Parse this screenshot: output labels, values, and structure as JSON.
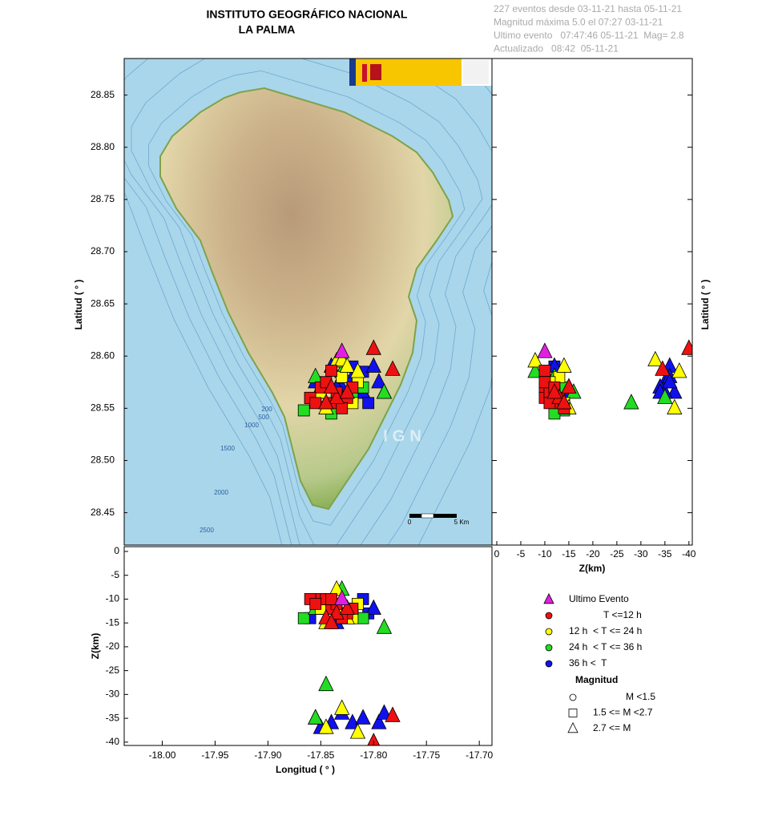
{
  "chart_data": {
    "type": "scatter",
    "title": "INSTITUTO GEOGRÁFICO NACIONAL",
    "subtitle": "LA PALMA",
    "info": [
      "227 eventos desde 03-11-21 hasta 05-11-21",
      "Magnitud máxima 5.0 el 07:27 03-11-21",
      "Ultimo evento   07:47:46 05-11-21  Mag= 2.8",
      "Actualizado   08:42  05-11-21"
    ],
    "xlabel": "Longitud ( ° )",
    "ylabel": "Latitud ( ° )",
    "zlabel": "Z(km)",
    "xlim": [
      -18.036,
      -17.688
    ],
    "ylim": [
      28.419,
      28.885
    ],
    "zlim": [
      1,
      -40.7
    ],
    "xticks": [
      {
        "value": -18.0,
        "label": "-18.00"
      },
      -17.95,
      {
        "value": -17.9,
        "label": "-17.90"
      },
      -17.85,
      {
        "value": -17.8,
        "label": "-17.80"
      },
      -17.75,
      {
        "value": -17.7,
        "label": "-17.70"
      }
    ],
    "yticks": [
      {
        "value": 28.45,
        "label": "28.45"
      },
      {
        "value": 28.5,
        "label": "28.50"
      },
      28.55,
      {
        "value": 28.6,
        "label": "28.60"
      },
      28.65,
      {
        "value": 28.7,
        "label": "28.70"
      },
      28.75,
      {
        "value": 28.8,
        "label": "28.80"
      },
      28.85
    ],
    "zticks": [
      0,
      -5,
      -10,
      -15,
      -20,
      -25,
      -30,
      -35,
      -40
    ],
    "map_annotations": [
      "200",
      "500",
      "1000",
      "1500",
      "2000",
      "2500",
      "IGN",
      "0",
      "5 Km"
    ],
    "series": [
      {
        "name": "Ultimo Evento",
        "color": "#e020e0",
        "legend_marker": "triangle",
        "x": [
          -17.83
        ],
        "values": [
          28.604
        ],
        "z": [
          -10
        ],
        "markers": [
          "triangle"
        ]
      },
      {
        "name": "T <=12 h",
        "color": "#ee1111",
        "legend_marker": "circle",
        "x": [
          -17.8,
          -17.782,
          -17.85,
          -17.86,
          -17.84,
          -17.835,
          -17.825,
          -17.83,
          -17.845,
          -17.82,
          -17.855,
          -17.84,
          -17.835,
          -17.845,
          -17.825,
          -17.84
        ],
        "values": [
          28.607,
          28.587,
          28.57,
          28.56,
          28.555,
          28.565,
          28.56,
          28.55,
          28.575,
          28.57,
          28.555,
          28.586,
          28.56,
          28.555,
          28.565,
          28.57
        ],
        "z": [
          -40,
          -34.5,
          -10,
          -10,
          -12,
          -11,
          -13,
          -14,
          -10,
          -12,
          -11,
          -10,
          -13,
          -14,
          -12,
          -15
        ],
        "markers": [
          "triangle",
          "triangle",
          "square",
          "square",
          "square",
          "square",
          "square",
          "square",
          "square",
          "square",
          "square",
          "square",
          "triangle",
          "triangle",
          "triangle",
          "triangle"
        ]
      },
      {
        "name": "12 h  < T <= 24 h",
        "color": "#ffff00",
        "legend_marker": "circle",
        "x": [
          -17.835,
          -17.85,
          -17.82,
          -17.83,
          -17.845,
          -17.815,
          -17.83,
          -17.845,
          -17.825,
          -17.815
        ],
        "values": [
          28.595,
          28.565,
          28.555,
          28.58,
          28.55,
          28.575,
          28.596,
          28.55,
          28.59,
          28.585
        ],
        "z": [
          -8,
          -12,
          -14,
          -13,
          -15,
          -11,
          -33,
          -37,
          -14,
          -38
        ],
        "markers": [
          "triangle",
          "square",
          "square",
          "square",
          "triangle",
          "square",
          "triangle",
          "triangle",
          "triangle",
          "triangle"
        ]
      },
      {
        "name": "24 h  < T <= 36 h",
        "color": "#22dd22",
        "legend_marker": "circle",
        "x": [
          -17.866,
          -17.79,
          -17.845,
          -17.85,
          -17.855,
          -17.82,
          -17.83,
          -17.81,
          -17.84,
          -17.855
        ],
        "values": [
          28.548,
          28.565,
          28.555,
          28.575,
          28.58,
          28.56,
          28.585,
          28.57,
          28.545,
          28.56
        ],
        "z": [
          -14,
          -16,
          -28,
          -11,
          -12,
          -13,
          -8,
          -14,
          -12,
          -35
        ],
        "markers": [
          "square",
          "triangle",
          "triangle",
          "square",
          "triangle",
          "square",
          "triangle",
          "square",
          "square",
          "triangle"
        ]
      },
      {
        "name": "36 h <  T",
        "color": "#1111ee",
        "legend_marker": "circle",
        "x": [
          -17.855,
          -17.85,
          -17.84,
          -17.83,
          -17.82,
          -17.81,
          -17.795,
          -17.79,
          -17.805,
          -17.81,
          -17.82,
          -17.835,
          -17.8,
          -17.86
        ],
        "values": [
          28.575,
          28.565,
          28.59,
          28.57,
          28.58,
          28.565,
          28.575,
          28.565,
          28.555,
          28.585,
          28.59,
          28.57,
          28.59,
          28.56
        ],
        "z": [
          -35,
          -37,
          -36,
          -34,
          -36,
          -35,
          -36,
          -34,
          -13,
          -10,
          -12,
          -15,
          -12,
          -14
        ],
        "markers": [
          "triangle",
          "triangle",
          "triangle",
          "triangle",
          "triangle",
          "triangle",
          "triangle",
          "triangle",
          "square",
          "square",
          "square",
          "triangle",
          "triangle",
          "square"
        ]
      }
    ],
    "magnitude_legend": {
      "title": "Magnitud",
      "items": [
        "M <1.5",
        "1.5 <= M <2.7",
        "2.7 <= M"
      ],
      "markers": [
        "circle",
        "square",
        "triangle"
      ]
    }
  }
}
